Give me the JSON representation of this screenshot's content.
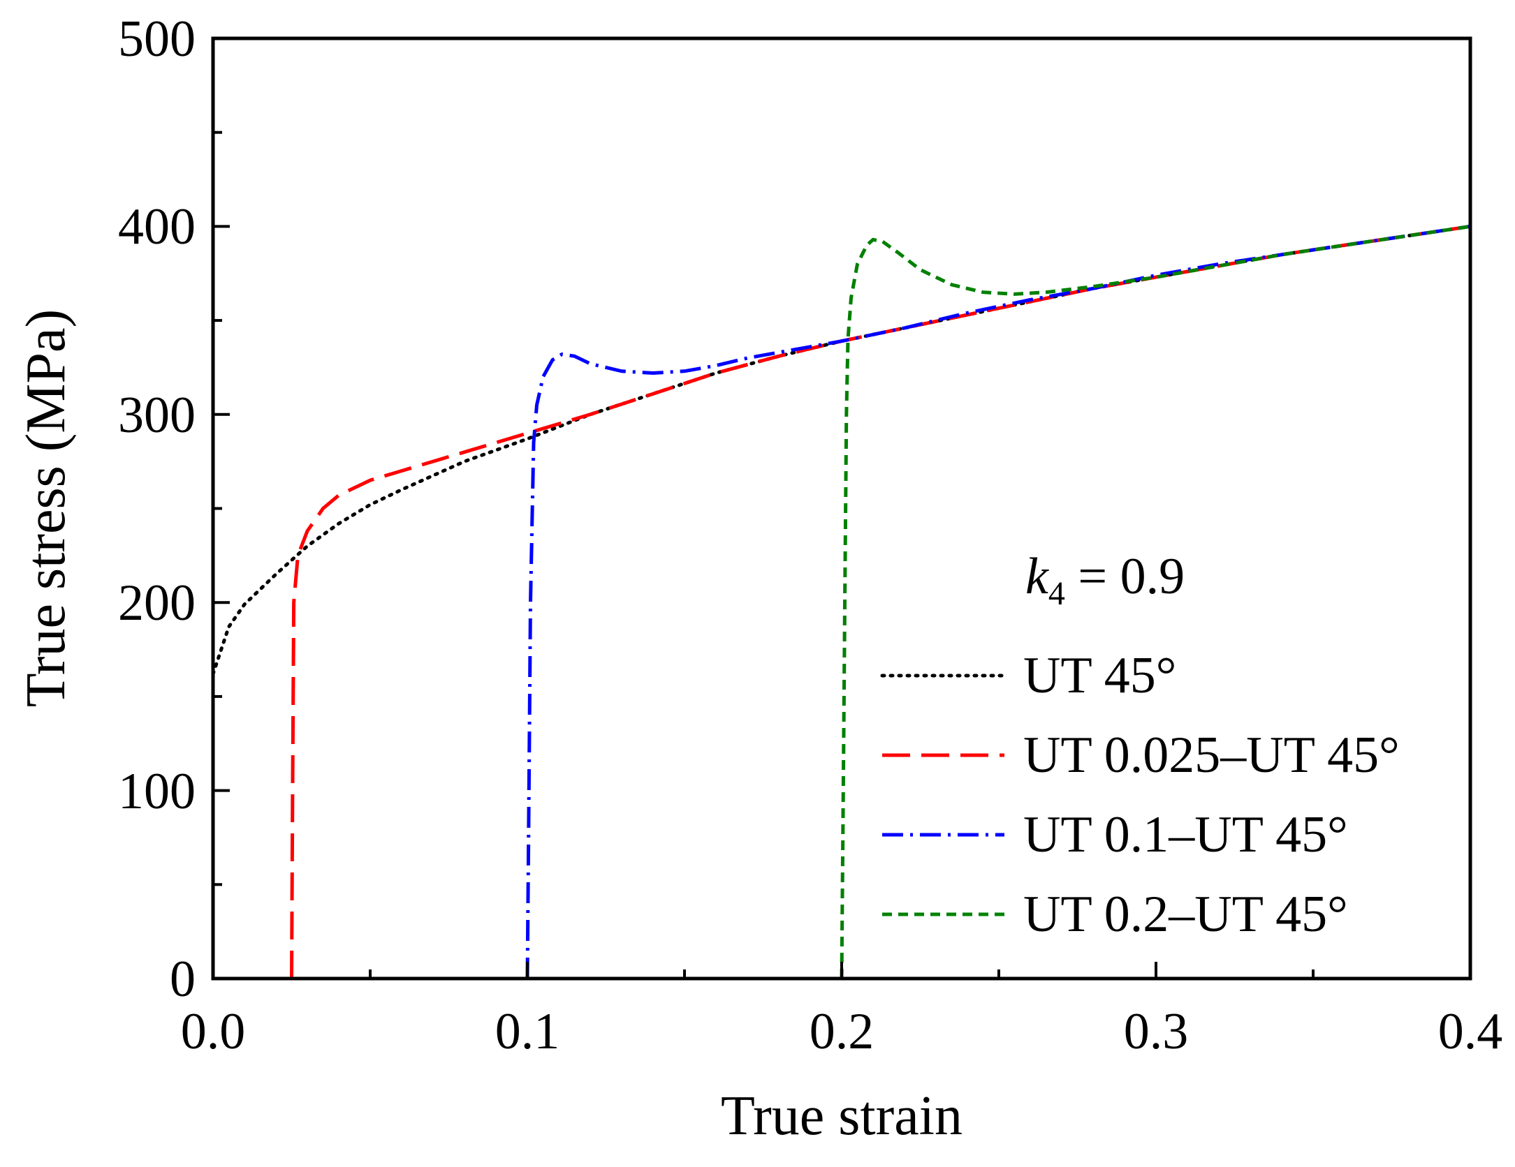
{
  "chart_data": {
    "type": "line",
    "title": "",
    "xlabel": "True strain",
    "ylabel": "True stress (MPa)",
    "xlim": [
      0.0,
      0.4
    ],
    "ylim": [
      0,
      500
    ],
    "x_ticks": [
      "0.0",
      "0.1",
      "0.2",
      "0.3",
      "0.4"
    ],
    "y_ticks": [
      "0",
      "100",
      "200",
      "300",
      "400",
      "500"
    ],
    "grid": false,
    "legend_position": "center-right",
    "annotation": {
      "symbol": "k",
      "subscript": "4",
      "rest": " = 0.9"
    },
    "series": [
      {
        "name": "UT 45°",
        "color": "#000000",
        "style": "dotted",
        "points": [
          [
            0.0,
            162
          ],
          [
            0.005,
            187
          ],
          [
            0.01,
            199
          ],
          [
            0.02,
            215
          ],
          [
            0.03,
            230
          ],
          [
            0.04,
            242
          ],
          [
            0.05,
            252
          ],
          [
            0.06,
            260
          ],
          [
            0.08,
            275
          ],
          [
            0.1,
            287
          ],
          [
            0.12,
            300
          ],
          [
            0.14,
            311
          ],
          [
            0.16,
            322
          ],
          [
            0.18,
            331
          ],
          [
            0.2,
            339
          ],
          [
            0.22,
            346
          ],
          [
            0.24,
            353
          ],
          [
            0.26,
            360
          ],
          [
            0.28,
            367
          ],
          [
            0.3,
            373
          ],
          [
            0.32,
            379
          ],
          [
            0.34,
            385
          ],
          [
            0.36,
            390
          ],
          [
            0.38,
            395
          ],
          [
            0.4,
            400
          ]
        ]
      },
      {
        "name": "UT 0.025–UT 45°",
        "color": "#ff0000",
        "style": "dashed",
        "points": [
          [
            0.025,
            0
          ],
          [
            0.0253,
            100
          ],
          [
            0.0257,
            200
          ],
          [
            0.027,
            225
          ],
          [
            0.03,
            238
          ],
          [
            0.035,
            250
          ],
          [
            0.04,
            257
          ],
          [
            0.05,
            265
          ],
          [
            0.06,
            270
          ],
          [
            0.07,
            275
          ],
          [
            0.08,
            280
          ],
          [
            0.1,
            290
          ],
          [
            0.12,
            300
          ],
          [
            0.14,
            311
          ],
          [
            0.16,
            322
          ],
          [
            0.18,
            331
          ],
          [
            0.2,
            339
          ],
          [
            0.22,
            346
          ],
          [
            0.24,
            353
          ],
          [
            0.26,
            360
          ],
          [
            0.28,
            367
          ],
          [
            0.3,
            373
          ],
          [
            0.32,
            379
          ],
          [
            0.34,
            385
          ],
          [
            0.36,
            390
          ],
          [
            0.38,
            395
          ],
          [
            0.4,
            400
          ]
        ]
      },
      {
        "name": "UT 0.1–UT 45°",
        "color": "#0000ff",
        "style": "dashdot",
        "points": [
          [
            0.1,
            0
          ],
          [
            0.1005,
            100
          ],
          [
            0.101,
            200
          ],
          [
            0.102,
            285
          ],
          [
            0.103,
            305
          ],
          [
            0.105,
            320
          ],
          [
            0.108,
            329
          ],
          [
            0.111,
            332
          ],
          [
            0.115,
            331
          ],
          [
            0.12,
            327
          ],
          [
            0.13,
            323
          ],
          [
            0.14,
            322
          ],
          [
            0.15,
            323
          ],
          [
            0.16,
            326
          ],
          [
            0.17,
            330
          ],
          [
            0.18,
            333
          ],
          [
            0.2,
            339
          ],
          [
            0.22,
            346
          ],
          [
            0.24,
            354
          ],
          [
            0.26,
            361
          ],
          [
            0.28,
            367
          ],
          [
            0.3,
            374
          ],
          [
            0.32,
            380
          ],
          [
            0.34,
            385
          ],
          [
            0.36,
            390
          ],
          [
            0.38,
            395
          ],
          [
            0.4,
            400
          ]
        ]
      },
      {
        "name": "UT 0.2–UT 45°",
        "color": "#008000",
        "style": "short-dashed",
        "points": [
          [
            0.2,
            0
          ],
          [
            0.2005,
            100
          ],
          [
            0.201,
            200
          ],
          [
            0.2015,
            300
          ],
          [
            0.202,
            340
          ],
          [
            0.203,
            362
          ],
          [
            0.205,
            380
          ],
          [
            0.208,
            390
          ],
          [
            0.21,
            393
          ],
          [
            0.213,
            392
          ],
          [
            0.218,
            386
          ],
          [
            0.225,
            377
          ],
          [
            0.235,
            369
          ],
          [
            0.245,
            365
          ],
          [
            0.255,
            364
          ],
          [
            0.265,
            365
          ],
          [
            0.28,
            368
          ],
          [
            0.3,
            373
          ],
          [
            0.32,
            379
          ],
          [
            0.34,
            385
          ],
          [
            0.36,
            390
          ],
          [
            0.38,
            395
          ],
          [
            0.4,
            400
          ]
        ]
      }
    ]
  }
}
